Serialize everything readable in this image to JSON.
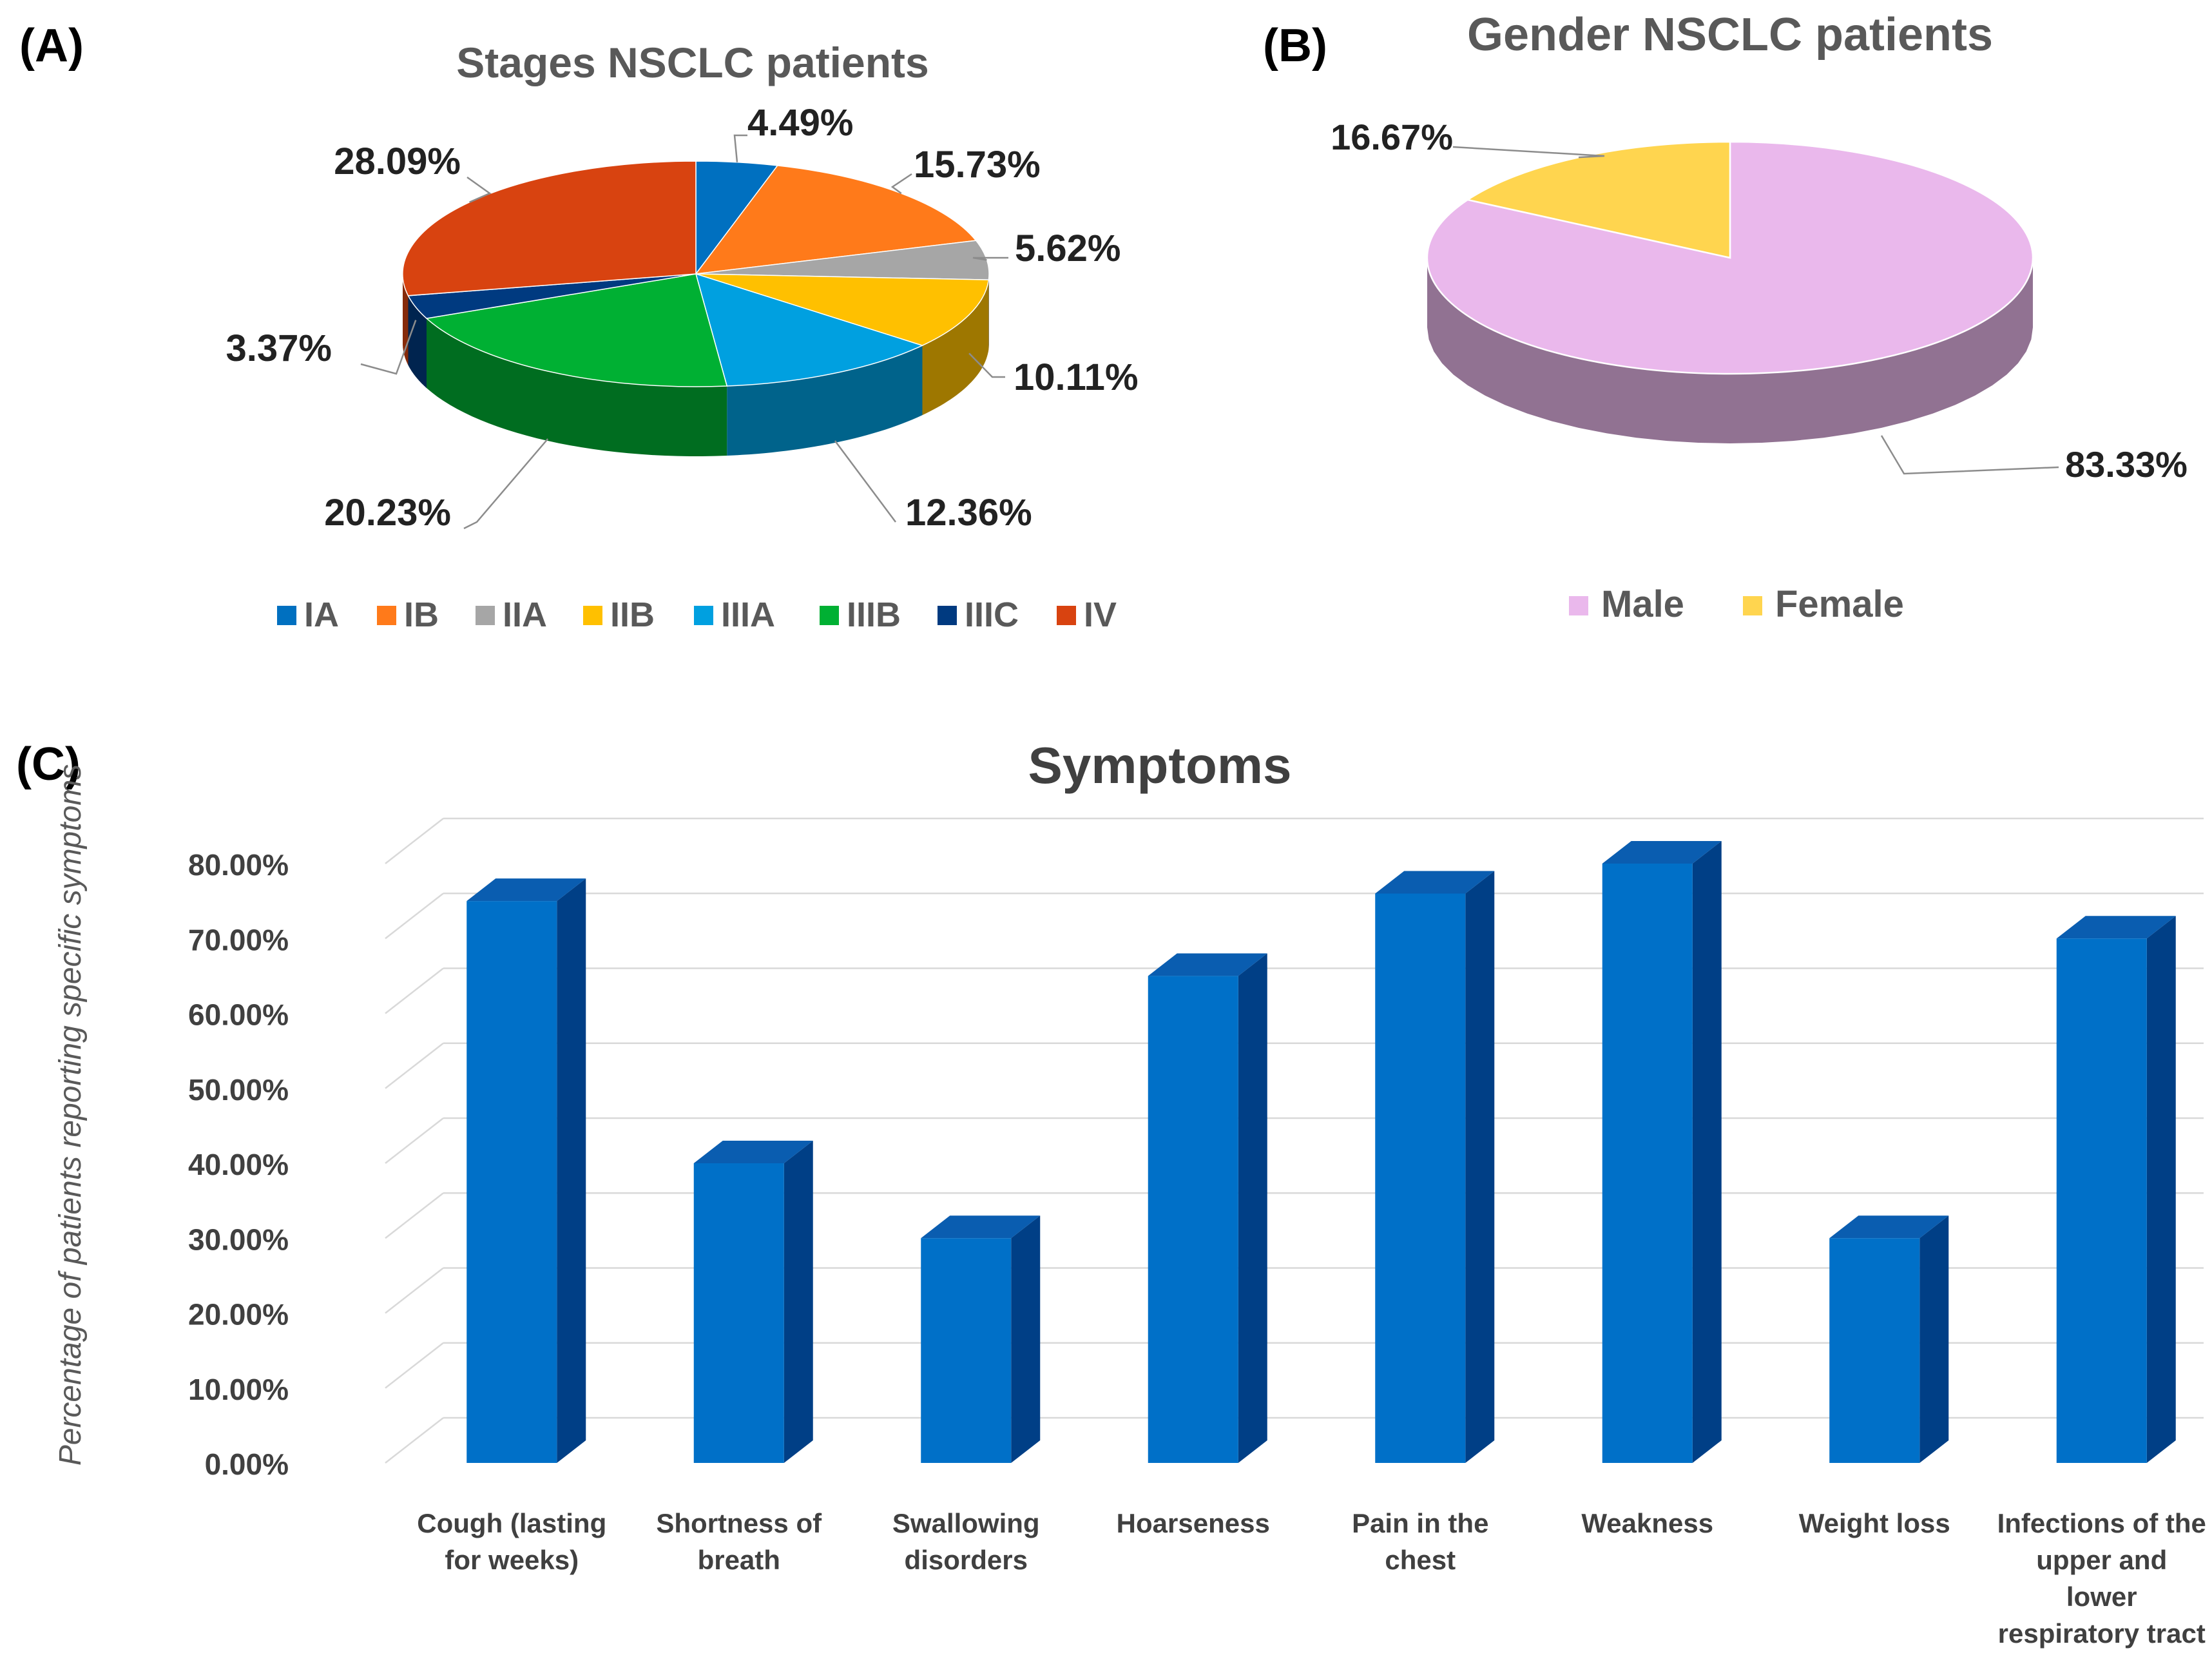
{
  "panels": {
    "a": {
      "letter": "(A)"
    },
    "b": {
      "letter": "(B)"
    },
    "c": {
      "letter": "(C)"
    }
  },
  "chart_data": [
    {
      "type": "pie",
      "panel": "A",
      "title": "Stages NSCLC patients",
      "three_d": true,
      "legend_position": "bottom",
      "slices": [
        {
          "label": "IA",
          "value": 4.49,
          "value_label": "4.49%",
          "color": "#0070C0"
        },
        {
          "label": "IB",
          "value": 15.73,
          "value_label": "15.73%",
          "color": "#FF7A1A"
        },
        {
          "label": "IIA",
          "value": 5.62,
          "value_label": "5.62%",
          "color": "#A6A6A6"
        },
        {
          "label": "IIB",
          "value": 10.11,
          "value_label": "10.11%",
          "color": "#FFC000"
        },
        {
          "label": "IIIA",
          "value": 12.36,
          "value_label": "12.36%",
          "color": "#00A0E0"
        },
        {
          "label": "IIIB",
          "value": 20.23,
          "value_label": "20.23%",
          "color": "#00B033"
        },
        {
          "label": "IIIC",
          "value": 3.37,
          "value_label": "3.37%",
          "color": "#003A80"
        },
        {
          "label": "IV",
          "value": 28.09,
          "value_label": "28.09%",
          "color": "#D84310"
        }
      ]
    },
    {
      "type": "pie",
      "panel": "B",
      "title": "Gender NSCLC patients",
      "three_d": true,
      "legend_position": "bottom",
      "slices": [
        {
          "label": "Male",
          "value": 83.33,
          "value_label": "83.33%",
          "color": "#EAB8EC"
        },
        {
          "label": "Female",
          "value": 16.67,
          "value_label": "16.67%",
          "color": "#FFD54F"
        }
      ]
    },
    {
      "type": "bar",
      "panel": "C",
      "three_d": true,
      "title": "Symptoms",
      "xlabel": "",
      "ylabel": "Percentage of patients reporting specific symptoms",
      "ylim": [
        0,
        80
      ],
      "yticks": [
        0,
        10,
        20,
        30,
        40,
        50,
        60,
        70,
        80
      ],
      "ytick_labels": [
        "0.00%",
        "10.00%",
        "20.00%",
        "30.00%",
        "40.00%",
        "50.00%",
        "60.00%",
        "70.00%",
        "80.00%"
      ],
      "grid": true,
      "bar_color": "#0070C8",
      "categories": [
        [
          "Cough (lasting",
          "for weeks)"
        ],
        [
          "Shortness of",
          "breath"
        ],
        [
          "Swallowing",
          "disorders"
        ],
        [
          "Hoarseness"
        ],
        [
          "Pain in the",
          "chest"
        ],
        [
          "Weakness"
        ],
        [
          "Weight loss"
        ],
        [
          "Infections of the",
          "upper and",
          "lower",
          "respiratory tract"
        ]
      ],
      "values": [
        75,
        40,
        30,
        65,
        76,
        80,
        30,
        70
      ]
    }
  ]
}
